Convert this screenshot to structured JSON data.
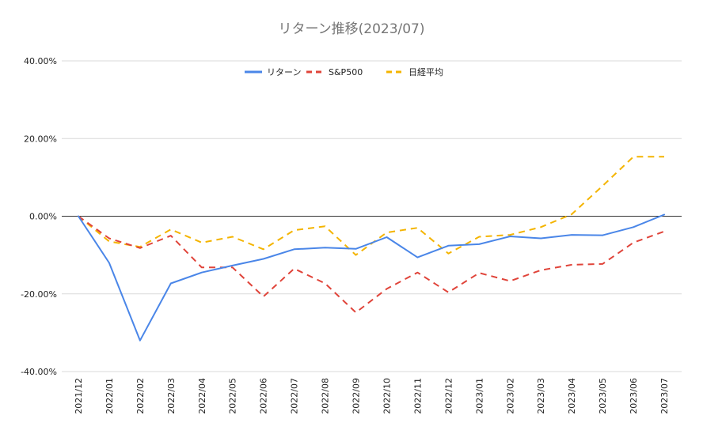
{
  "chart_data": {
    "type": "line",
    "title": "リターン推移(2023/07)",
    "xlabel": "",
    "ylabel": "",
    "categories": [
      "2021/12",
      "2022/01",
      "2022/02",
      "2022/03",
      "2022/04",
      "2022/05",
      "2022/06",
      "2022/07",
      "2022/08",
      "2022/09",
      "2022/10",
      "2022/11",
      "2022/12",
      "2023/01",
      "2023/02",
      "2023/03",
      "2023/04",
      "2023/05",
      "2023/06",
      "2023/07"
    ],
    "ylim": [
      -40,
      40
    ],
    "yticks": [
      "40.00%",
      "20.00%",
      "0.00%",
      "-20.00%",
      "-40.00%"
    ],
    "ytick_values": [
      40,
      20,
      0,
      -20,
      -40
    ],
    "grid": true,
    "legend_position": "top-center",
    "series": [
      {
        "name": "リターン",
        "color": "#4a86e8",
        "style": "solid",
        "values": [
          0,
          -12,
          -32,
          -17.3,
          -14.5,
          -12.7,
          -11,
          -8.5,
          -8.1,
          -8.4,
          -5.4,
          -10.6,
          -7.6,
          -7.2,
          -5.2,
          -5.7,
          -4.8,
          -4.9,
          -2.8,
          0.4
        ]
      },
      {
        "name": "S&P500",
        "color": "#e0443a",
        "style": "dashed",
        "values": [
          0,
          -5.7,
          -8.2,
          -5,
          -13.2,
          -13.2,
          -20.7,
          -13.5,
          -17.3,
          -24.8,
          -18.7,
          -14.5,
          -19.6,
          -14.6,
          -16.7,
          -13.9,
          -12.5,
          -12.3,
          -6.8,
          -3.9
        ]
      },
      {
        "name": "日経平均",
        "color": "#f4b400",
        "style": "dashed",
        "values": [
          0,
          -6.5,
          -7.9,
          -3.4,
          -6.8,
          -5.3,
          -8.5,
          -3.6,
          -2.6,
          -10,
          -4.2,
          -3,
          -9.6,
          -5.3,
          -4.8,
          -2.8,
          0.5,
          7.8,
          15.3,
          15.3
        ]
      }
    ]
  }
}
